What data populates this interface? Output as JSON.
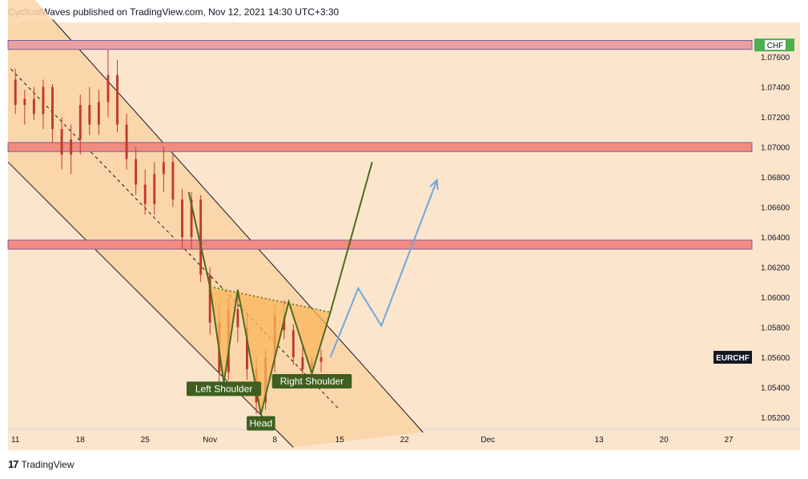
{
  "header": {
    "text": "CyclicalWaves published on TradingView.com, Nov 12, 2021 14:30 UTC+3:30"
  },
  "footer": {
    "brand": "TradingView",
    "logo_glyph": "17"
  },
  "chart_data": {
    "type": "candlestick",
    "symbol_tag": "EURCHF",
    "top_tag": "CHF",
    "y_ticks": [
      "1.07600",
      "1.07400",
      "1.07200",
      "1.07000",
      "1.06800",
      "1.06600",
      "1.06400",
      "1.06200",
      "1.06000",
      "1.05800",
      "1.05600",
      "1.05400",
      "1.05200"
    ],
    "y_tick_values": [
      1.076,
      1.074,
      1.072,
      1.07,
      1.068,
      1.066,
      1.064,
      1.062,
      1.06,
      1.058,
      1.056,
      1.054,
      1.052
    ],
    "ylim": [
      1.0512,
      1.0783
    ],
    "x_ticks": [
      "11",
      "18",
      "25",
      "Nov",
      "8",
      "15",
      "22",
      "Dec",
      "13",
      "20",
      "27"
    ],
    "x_tick_days": [
      0,
      7,
      14,
      21,
      28,
      35,
      42,
      51,
      63,
      70,
      77
    ],
    "xlim": [
      -0.8,
      79.5
    ],
    "current_price": 1.056,
    "zones": [
      {
        "name": "top-zone",
        "y1": 1.0765,
        "y2": 1.0771,
        "color": "#e8a0a0"
      },
      {
        "name": "resistance-zone-upper",
        "y1": 1.0697,
        "y2": 1.0703,
        "color": "#f28b82"
      },
      {
        "name": "resistance-zone-lower",
        "y1": 1.0632,
        "y2": 1.0638,
        "color": "#f28b82"
      }
    ],
    "pattern_labels": [
      {
        "text": "Left Shoulder",
        "x": 22.5,
        "y": 1.0539
      },
      {
        "text": "Head",
        "x": 26.5,
        "y": 1.0516
      },
      {
        "text": "Right Shoulder",
        "x": 32.0,
        "y": 1.0544
      }
    ],
    "pattern_path": [
      [
        18.7,
        1.067
      ],
      [
        21.0,
        1.0607
      ],
      [
        22.5,
        1.0543
      ],
      [
        24.0,
        1.0605
      ],
      [
        26.5,
        1.0522
      ],
      [
        29.5,
        1.0597
      ],
      [
        32.0,
        1.0549
      ],
      [
        34.0,
        1.059
      ],
      [
        38.5,
        1.069
      ]
    ],
    "neckline": [
      [
        21.0,
        1.0607
      ],
      [
        34.0,
        1.059
      ]
    ],
    "projection_blue": [
      [
        34.0,
        1.056
      ],
      [
        37.0,
        1.0606
      ],
      [
        39.5,
        1.0581
      ],
      [
        45.5,
        1.0678
      ]
    ],
    "channel_upper": [
      [
        4.0,
        1.0785
      ],
      [
        44.0,
        1.051
      ]
    ],
    "channel_lower": [
      [
        -0.8,
        1.069
      ],
      [
        30.0,
        1.05
      ]
    ],
    "channel_mid": [
      [
        -0.5,
        1.0752
      ],
      [
        35.0,
        1.0525
      ]
    ],
    "candles": [
      {
        "d": 0,
        "o": 1.0745,
        "h": 1.0752,
        "l": 1.0722,
        "c": 1.0728
      },
      {
        "d": 1,
        "o": 1.0728,
        "h": 1.0738,
        "l": 1.0715,
        "c": 1.0732
      },
      {
        "d": 2,
        "o": 1.0732,
        "h": 1.074,
        "l": 1.0718,
        "c": 1.0722
      },
      {
        "d": 3,
        "o": 1.0722,
        "h": 1.0745,
        "l": 1.0712,
        "c": 1.074
      },
      {
        "d": 4,
        "o": 1.074,
        "h": 1.0742,
        "l": 1.0703,
        "c": 1.0712
      },
      {
        "d": 5,
        "o": 1.0712,
        "h": 1.072,
        "l": 1.0685,
        "c": 1.0695
      },
      {
        "d": 6,
        "o": 1.0695,
        "h": 1.0715,
        "l": 1.0682,
        "c": 1.0705
      },
      {
        "d": 7,
        "o": 1.0705,
        "h": 1.0735,
        "l": 1.0695,
        "c": 1.0728
      },
      {
        "d": 8,
        "o": 1.0728,
        "h": 1.074,
        "l": 1.0708,
        "c": 1.0715
      },
      {
        "d": 9,
        "o": 1.0715,
        "h": 1.0738,
        "l": 1.0708,
        "c": 1.073
      },
      {
        "d": 10,
        "o": 1.073,
        "h": 1.0765,
        "l": 1.072,
        "c": 1.0748
      },
      {
        "d": 11,
        "o": 1.0748,
        "h": 1.0758,
        "l": 1.071,
        "c": 1.0715
      },
      {
        "d": 12,
        "o": 1.0715,
        "h": 1.0722,
        "l": 1.0685,
        "c": 1.0692
      },
      {
        "d": 13,
        "o": 1.0692,
        "h": 1.07,
        "l": 1.0668,
        "c": 1.0675
      },
      {
        "d": 14,
        "o": 1.0675,
        "h": 1.0685,
        "l": 1.0655,
        "c": 1.0662
      },
      {
        "d": 15,
        "o": 1.0662,
        "h": 1.069,
        "l": 1.0655,
        "c": 1.0682
      },
      {
        "d": 16,
        "o": 1.0682,
        "h": 1.07,
        "l": 1.067,
        "c": 1.069
      },
      {
        "d": 17,
        "o": 1.069,
        "h": 1.0695,
        "l": 1.066,
        "c": 1.0665
      },
      {
        "d": 18,
        "o": 1.0665,
        "h": 1.0672,
        "l": 1.0632,
        "c": 1.064
      },
      {
        "d": 19,
        "o": 1.064,
        "h": 1.067,
        "l": 1.0632,
        "c": 1.0665
      },
      {
        "d": 20,
        "o": 1.0665,
        "h": 1.0668,
        "l": 1.061,
        "c": 1.0615
      },
      {
        "d": 21,
        "o": 1.0615,
        "h": 1.062,
        "l": 1.0575,
        "c": 1.0583
      },
      {
        "d": 22,
        "o": 1.0583,
        "h": 1.0595,
        "l": 1.054,
        "c": 1.055
      },
      {
        "d": 23,
        "o": 1.055,
        "h": 1.06,
        "l": 1.0545,
        "c": 1.0592
      },
      {
        "d": 24,
        "o": 1.0592,
        "h": 1.0605,
        "l": 1.057,
        "c": 1.058
      },
      {
        "d": 25,
        "o": 1.058,
        "h": 1.059,
        "l": 1.0545,
        "c": 1.0552
      },
      {
        "d": 26,
        "o": 1.0552,
        "h": 1.056,
        "l": 1.0522,
        "c": 1.053
      },
      {
        "d": 27,
        "o": 1.053,
        "h": 1.0565,
        "l": 1.0525,
        "c": 1.056
      },
      {
        "d": 28,
        "o": 1.056,
        "h": 1.0595,
        "l": 1.055,
        "c": 1.0588
      },
      {
        "d": 29,
        "o": 1.0588,
        "h": 1.0598,
        "l": 1.0572,
        "c": 1.0578
      },
      {
        "d": 30,
        "o": 1.0578,
        "h": 1.0582,
        "l": 1.0555,
        "c": 1.056
      },
      {
        "d": 31,
        "o": 1.056,
        "h": 1.0568,
        "l": 1.0548,
        "c": 1.0552
      },
      {
        "d": 32,
        "o": 1.0552,
        "h": 1.056,
        "l": 1.0545,
        "c": 1.0557
      },
      {
        "d": 33,
        "o": 1.0557,
        "h": 1.0565,
        "l": 1.055,
        "c": 1.056
      }
    ]
  },
  "colors": {
    "plot_bg": "#fce5cd",
    "channel_fill": "#fbd3a4",
    "pattern_fill": "#f9b65a",
    "pattern_line": "#4c6b1f",
    "projection_blue": "#6fa8dc",
    "candle": "#c0392b",
    "channel_line": "#131722",
    "label_bg": "#3e5f1e",
    "price_tag_bg": "#131722",
    "top_tag_bg": "#4caf50"
  }
}
